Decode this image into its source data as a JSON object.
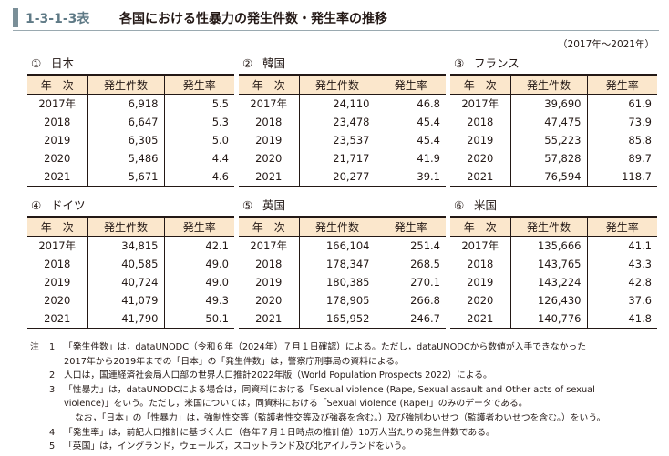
{
  "header": {
    "id": "1-3-1-3表",
    "title": "各国における性暴力の発生件数・発生率の推移",
    "period": "（2017年〜2021年）"
  },
  "columns": {
    "year": "年　次",
    "count": "発生件数",
    "rate": "発生率"
  },
  "countries": [
    {
      "num": "①",
      "name": "日本",
      "rows": [
        {
          "year": "2017年",
          "count": "6,918",
          "rate": "5.5"
        },
        {
          "year": "2018",
          "count": "6,647",
          "rate": "5.3"
        },
        {
          "year": "2019",
          "count": "6,305",
          "rate": "5.0"
        },
        {
          "year": "2020",
          "count": "5,486",
          "rate": "4.4"
        },
        {
          "year": "2021",
          "count": "5,671",
          "rate": "4.6"
        }
      ]
    },
    {
      "num": "②",
      "name": "韓国",
      "rows": [
        {
          "year": "2017年",
          "count": "24,110",
          "rate": "46.8"
        },
        {
          "year": "2018",
          "count": "23,478",
          "rate": "45.4"
        },
        {
          "year": "2019",
          "count": "23,537",
          "rate": "45.4"
        },
        {
          "year": "2020",
          "count": "21,717",
          "rate": "41.9"
        },
        {
          "year": "2021",
          "count": "20,277",
          "rate": "39.1"
        }
      ]
    },
    {
      "num": "③",
      "name": "フランス",
      "rows": [
        {
          "year": "2017年",
          "count": "39,690",
          "rate": "61.9"
        },
        {
          "year": "2018",
          "count": "47,475",
          "rate": "73.9"
        },
        {
          "year": "2019",
          "count": "55,223",
          "rate": "85.8"
        },
        {
          "year": "2020",
          "count": "57,828",
          "rate": "89.7"
        },
        {
          "year": "2021",
          "count": "76,594",
          "rate": "118.7"
        }
      ]
    },
    {
      "num": "④",
      "name": "ドイツ",
      "rows": [
        {
          "year": "2017年",
          "count": "34,815",
          "rate": "42.1"
        },
        {
          "year": "2018",
          "count": "40,585",
          "rate": "49.0"
        },
        {
          "year": "2019",
          "count": "40,724",
          "rate": "49.0"
        },
        {
          "year": "2020",
          "count": "41,079",
          "rate": "49.3"
        },
        {
          "year": "2021",
          "count": "41,790",
          "rate": "50.1"
        }
      ]
    },
    {
      "num": "⑤",
      "name": "英国",
      "rows": [
        {
          "year": "2017年",
          "count": "166,104",
          "rate": "251.4"
        },
        {
          "year": "2018",
          "count": "178,347",
          "rate": "268.5"
        },
        {
          "year": "2019",
          "count": "180,385",
          "rate": "270.1"
        },
        {
          "year": "2020",
          "count": "178,905",
          "rate": "266.8"
        },
        {
          "year": "2021",
          "count": "165,952",
          "rate": "246.7"
        }
      ]
    },
    {
      "num": "⑥",
      "name": "米国",
      "rows": [
        {
          "year": "2017年",
          "count": "135,666",
          "rate": "41.1"
        },
        {
          "year": "2018",
          "count": "143,765",
          "rate": "43.3"
        },
        {
          "year": "2019",
          "count": "143,224",
          "rate": "42.8"
        },
        {
          "year": "2020",
          "count": "126,430",
          "rate": "37.6"
        },
        {
          "year": "2021",
          "count": "140,776",
          "rate": "41.8"
        }
      ]
    }
  ],
  "notes": {
    "label": "注",
    "items": [
      {
        "num": "1",
        "lines": [
          "「発生件数」は，dataUNODC（令和６年（2024年）７月１日確認）による。ただし，dataUNODCから数値が入手できなかった",
          "2017年から2019年までの「日本」の「発生件数」は，警察庁刑事局の資料による。"
        ]
      },
      {
        "num": "2",
        "lines": [
          "人口は，国連経済社会局人口部の世界人口推計2022年版（World Population Prospects 2022）による。"
        ]
      },
      {
        "num": "3",
        "lines": [
          "「性暴力」は，dataUNODCによる場合は，同資料における「Sexual violence (Rape, Sexual assault and Other acts of sexual",
          "violence)」をいう。ただし，米国については，同資料における「Sexual violence (Rape)」のみのデータである。",
          "なお，「日本」の「性暴力」は，強制性交等（監護者性交等及び強姦を含む。）及び強制わいせつ（監護者わいせつを含む。）をいう。"
        ]
      },
      {
        "num": "4",
        "lines": [
          "「発生率」は，前記人口推計に基づく人口（各年７月１日時点の推計値）10万人当たりの発生件数である。"
        ]
      },
      {
        "num": "5",
        "lines": [
          "「英国」は，イングランド，ウェールズ，スコットランド及び北アイルランドをいう。"
        ]
      }
    ]
  }
}
